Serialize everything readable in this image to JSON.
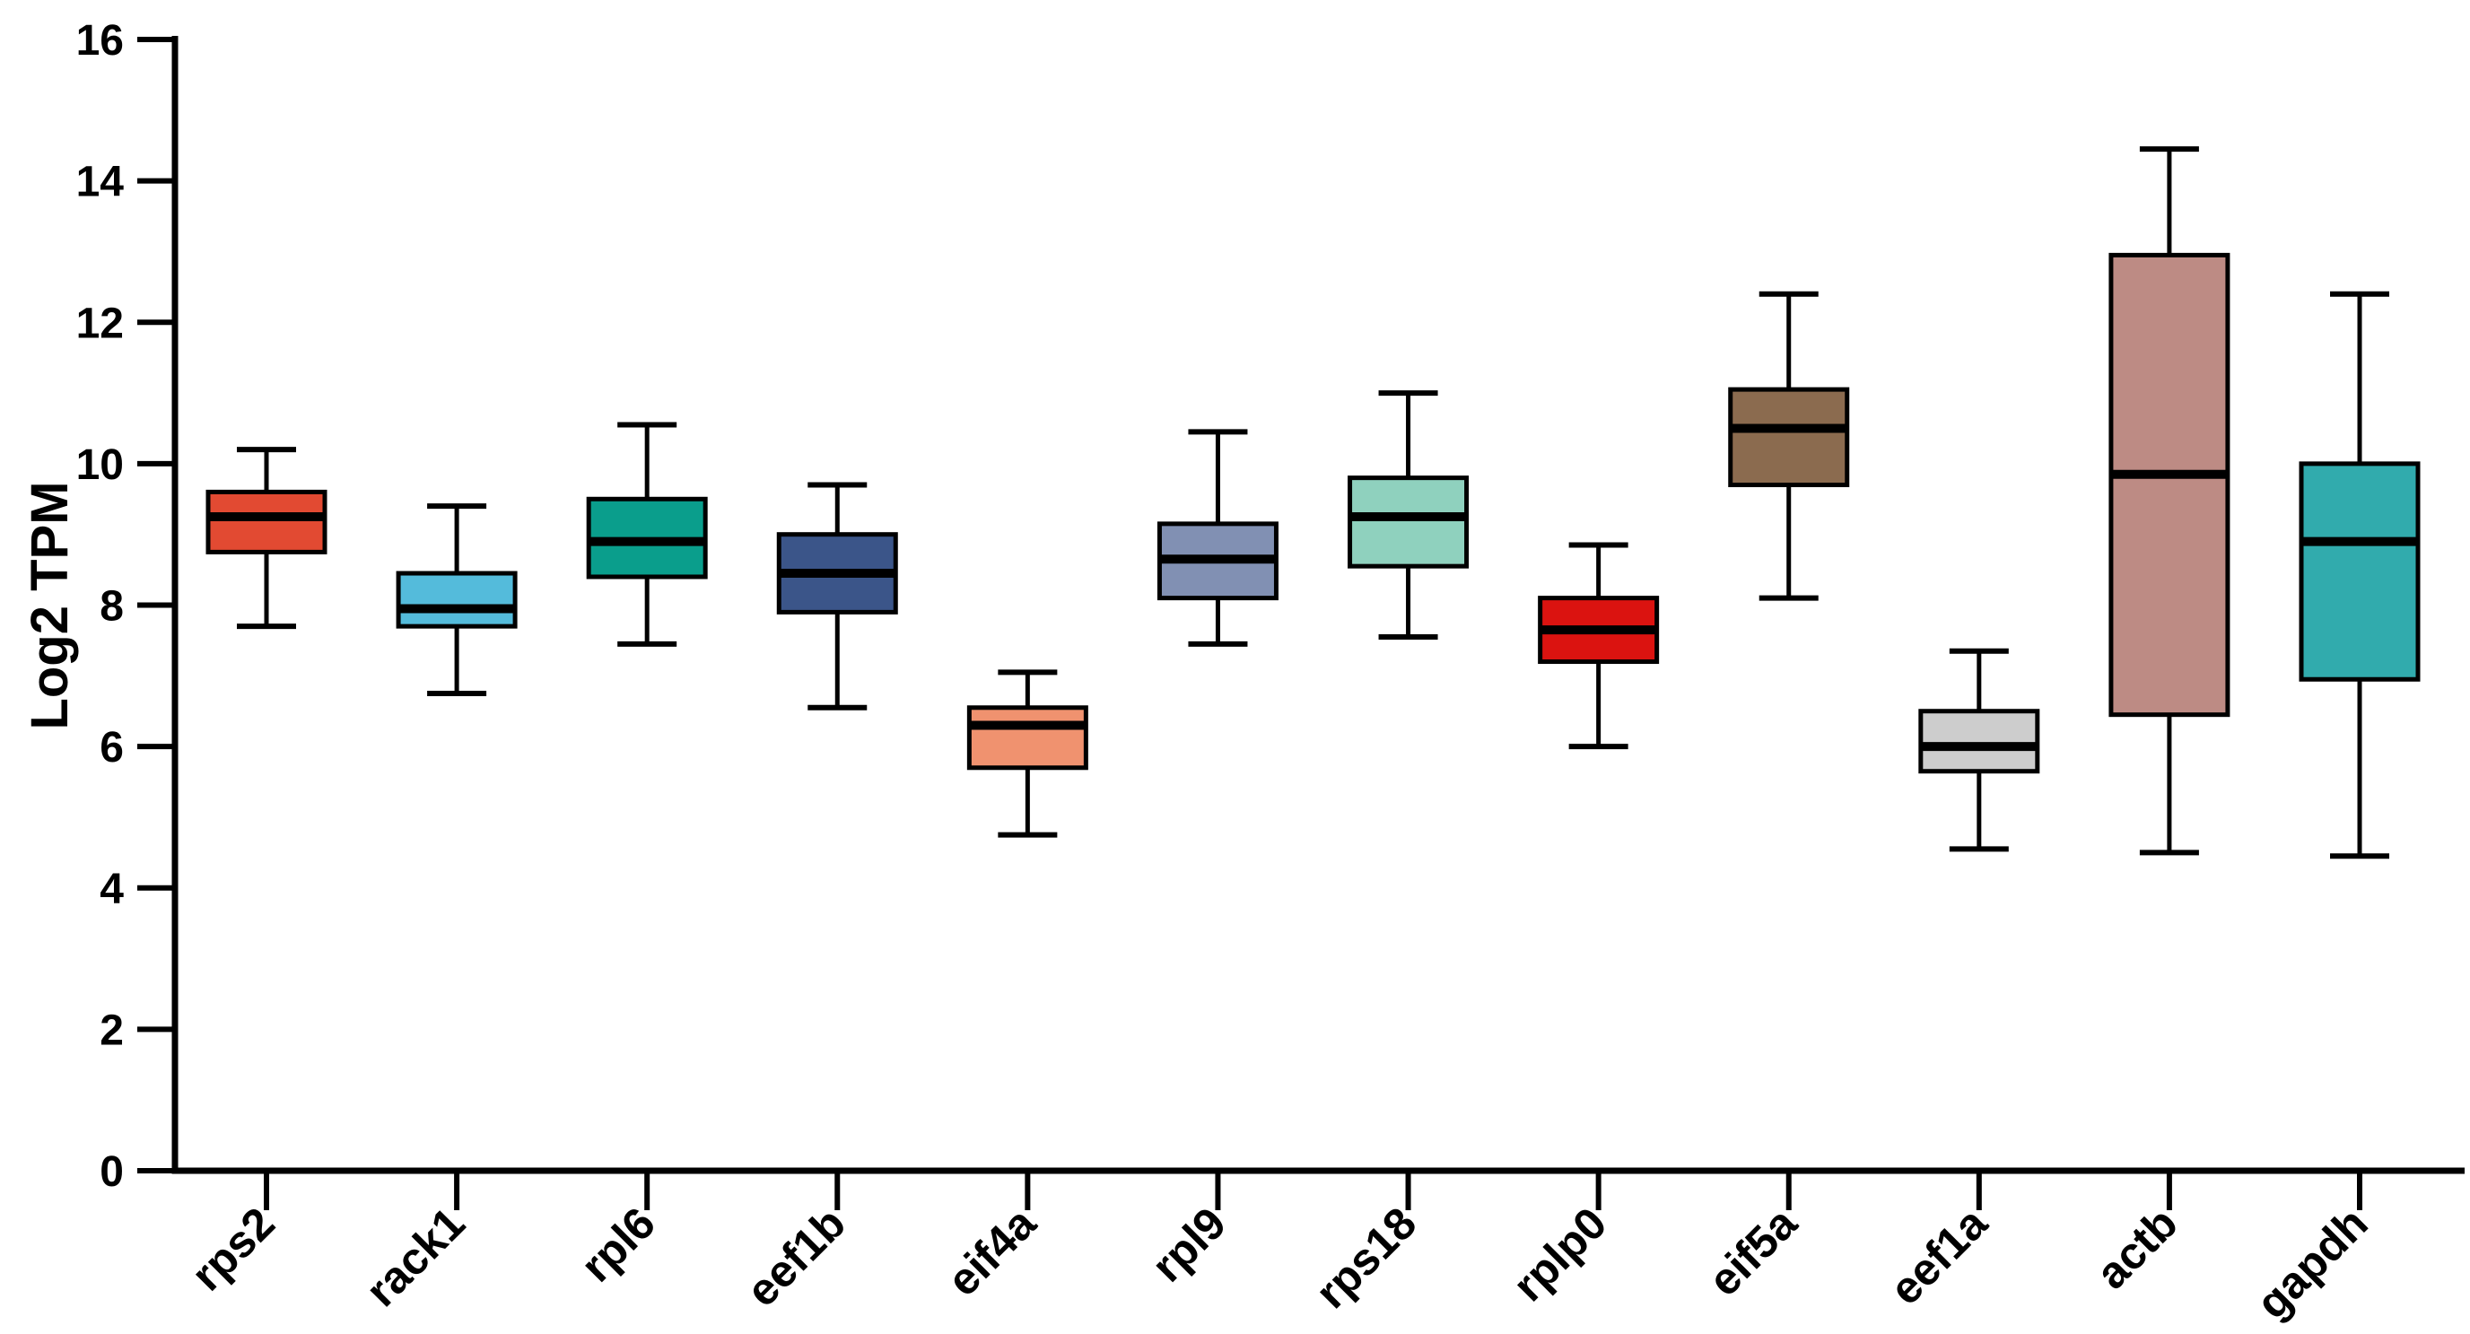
{
  "figure": {
    "background": "#ffffff",
    "axis_color": "#000000"
  },
  "chart_data": {
    "type": "boxplot",
    "title": "",
    "xlabel": "",
    "ylabel": "Log2 TPM",
    "ylim": [
      0,
      16
    ],
    "yticks": [
      0,
      2,
      4,
      6,
      8,
      10,
      12,
      14,
      16
    ],
    "grid": false,
    "legend_position": "none",
    "categories": [
      "rps2",
      "rack1",
      "rpl6",
      "eef1b",
      "eif4a",
      "rpl9",
      "rps18",
      "rplp0",
      "eif5a",
      "eef1a",
      "actb",
      "gapdh"
    ],
    "boxes": [
      {
        "gene": "rps2",
        "color": "#e24a32",
        "whisker_low": 7.7,
        "q1": 8.75,
        "median": 9.25,
        "q3": 9.6,
        "whisker_high": 10.2
      },
      {
        "gene": "rack1",
        "color": "#54bbdb",
        "whisker_low": 6.75,
        "q1": 7.7,
        "median": 7.95,
        "q3": 8.45,
        "whisker_high": 9.4
      },
      {
        "gene": "rpl6",
        "color": "#0a9e8c",
        "whisker_low": 7.45,
        "q1": 8.4,
        "median": 8.9,
        "q3": 9.5,
        "whisker_high": 10.55
      },
      {
        "gene": "eef1b",
        "color": "#3b5589",
        "whisker_low": 6.55,
        "q1": 7.9,
        "median": 8.45,
        "q3": 9.0,
        "whisker_high": 9.7
      },
      {
        "gene": "eif4a",
        "color": "#f0926f",
        "whisker_low": 4.75,
        "q1": 5.7,
        "median": 6.3,
        "q3": 6.55,
        "whisker_high": 7.05
      },
      {
        "gene": "rpl9",
        "color": "#8190b3",
        "whisker_low": 7.45,
        "q1": 8.1,
        "median": 8.65,
        "q3": 9.15,
        "whisker_high": 10.45
      },
      {
        "gene": "rps18",
        "color": "#8fd1be",
        "whisker_low": 7.55,
        "q1": 8.55,
        "median": 9.25,
        "q3": 9.8,
        "whisker_high": 11.0
      },
      {
        "gene": "rplp0",
        "color": "#db1310",
        "whisker_low": 6.0,
        "q1": 7.2,
        "median": 7.65,
        "q3": 8.1,
        "whisker_high": 8.85
      },
      {
        "gene": "eif5a",
        "color": "#8b6b4f",
        "whisker_low": 8.1,
        "q1": 9.7,
        "median": 10.5,
        "q3": 11.05,
        "whisker_high": 12.4
      },
      {
        "gene": "eef1a",
        "color": "#cdcdcd",
        "whisker_low": 4.55,
        "q1": 5.65,
        "median": 6.0,
        "q3": 6.5,
        "whisker_high": 7.35
      },
      {
        "gene": "actb",
        "color": "#bd8b84",
        "whisker_low": 4.5,
        "q1": 6.45,
        "median": 9.85,
        "q3": 12.95,
        "whisker_high": 14.45
      },
      {
        "gene": "gapdh",
        "color": "#31abad",
        "whisker_low": 4.45,
        "q1": 6.95,
        "median": 8.9,
        "q3": 10.0,
        "whisker_high": 12.4
      }
    ]
  }
}
